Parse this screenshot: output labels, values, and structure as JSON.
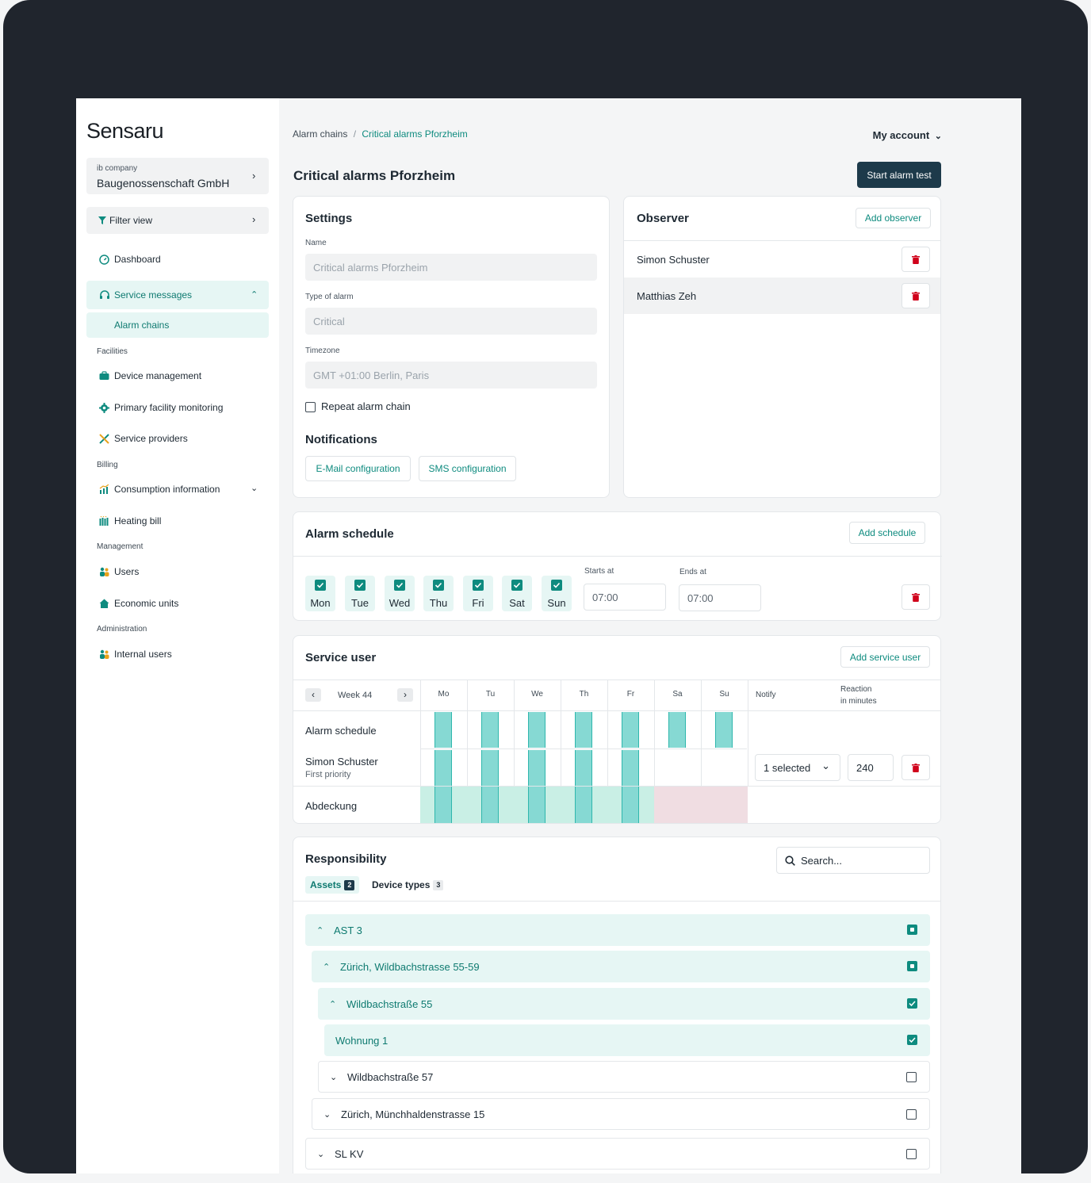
{
  "brand": "Sensaru",
  "company": {
    "label": "ib company",
    "value": "Baugenossenschaft GmbH"
  },
  "filter_label": "Filter view",
  "nav": {
    "dashboard": "Dashboard",
    "service_messages": "Service messages",
    "alarm_chains": "Alarm chains",
    "facilities": "Facilities",
    "device_management": "Device management",
    "primary_monitoring": "Primary facility monitoring",
    "service_providers": "Service providers",
    "billing": "Billing",
    "consumption": "Consumption information",
    "heating_bill": "Heating bill",
    "management": "Management",
    "users": "Users",
    "economic_units": "Economic units",
    "administration": "Administration",
    "internal_users": "Internal users"
  },
  "breadcrumb": {
    "parent": "Alarm chains",
    "sep": "/",
    "current": "Critical alarms Pforzheim"
  },
  "account_label": "My account",
  "page_title": "Critical alarms Pforzheim",
  "start_test_label": "Start alarm test",
  "settings": {
    "title": "Settings",
    "name_label": "Name",
    "name_value": "Critical alarms Pforzheim",
    "type_label": "Type of alarm",
    "type_value": "Critical",
    "tz_label": "Timezone",
    "tz_value": "GMT +01:00 Berlin, Paris",
    "repeat_label": "Repeat alarm chain",
    "notifications_title": "Notifications",
    "email_btn": "E-Mail configuration",
    "sms_btn": "SMS configuration"
  },
  "observer": {
    "title": "Observer",
    "add_label": "Add observer",
    "people": [
      "Simon Schuster",
      "Matthias Zeh"
    ]
  },
  "schedule": {
    "title": "Alarm schedule",
    "add_label": "Add schedule",
    "days": [
      "Mon",
      "Tue",
      "Wed",
      "Thu",
      "Fri",
      "Sat",
      "Sun"
    ],
    "starts_label": "Starts at",
    "starts_value": "07:00",
    "ends_label": "Ends at",
    "ends_value": "07:00"
  },
  "service_user": {
    "title": "Service user",
    "add_label": "Add service user",
    "week_label": "Week 44",
    "day_cols": [
      "Mo",
      "Tu",
      "We",
      "Th",
      "Fr",
      "Sa",
      "Su"
    ],
    "notify_label": "Notify",
    "reaction_label_1": "Reaction",
    "reaction_label_2": "in minutes",
    "row_schedule": "Alarm schedule",
    "user_name": "Simon Schuster",
    "user_priority": "First priority",
    "notify_value": "1 selected",
    "reaction_value": "240",
    "coverage_label": "Abdeckung"
  },
  "responsibility": {
    "title": "Responsibility",
    "search_placeholder": "Search...",
    "tab_assets": "Assets",
    "tab_assets_count": "2",
    "tab_devices": "Device types",
    "tab_devices_count": "3",
    "tree": [
      "AST 3",
      "Zürich, Wildbachstrasse 55-59",
      "Wildbachstraße 55",
      "Wohnung 1",
      "Wildbachstraße 57",
      "Zürich, Münchhaldenstrasse 15",
      "SL KV"
    ]
  },
  "colors": {
    "accent": "#0e8b7f",
    "dark_button": "#1d3a4a",
    "bar": "#86d9d3",
    "coverage_ok": "#c9efe5",
    "coverage_missing": "#f0dde2",
    "danger": "#d0021b"
  }
}
